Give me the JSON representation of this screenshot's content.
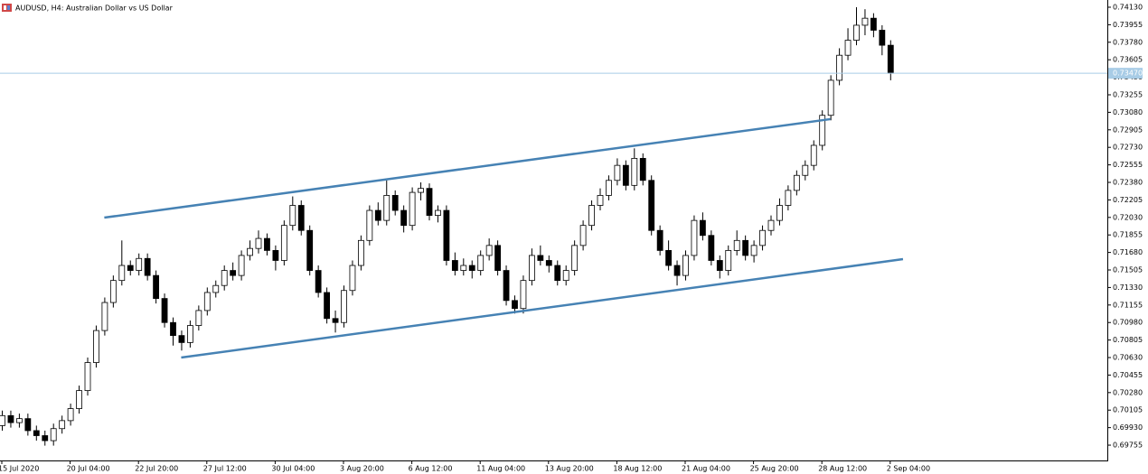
{
  "chart_data": {
    "type": "candlestick",
    "title": "AUDUSD, H4:  Australian Dollar vs US Dollar",
    "categories": [
      "15 Jul 2020",
      null,
      null,
      null,
      null,
      null,
      null,
      null,
      "20 Jul 04:00",
      null,
      null,
      null,
      null,
      null,
      null,
      null,
      "22 Jul 20:00",
      null,
      null,
      null,
      null,
      null,
      null,
      null,
      "27 Jul 12:00",
      null,
      null,
      null,
      null,
      null,
      null,
      null,
      "30 Jul 04:00",
      null,
      null,
      null,
      null,
      null,
      null,
      null,
      "3 Aug 20:00",
      null,
      null,
      null,
      null,
      null,
      null,
      null,
      "6 Aug 12:00",
      null,
      null,
      null,
      null,
      null,
      null,
      null,
      "11 Aug 04:00",
      null,
      null,
      null,
      null,
      null,
      null,
      null,
      "13 Aug 20:00",
      null,
      null,
      null,
      null,
      null,
      null,
      null,
      "18 Aug 12:00",
      null,
      null,
      null,
      null,
      null,
      null,
      null,
      "21 Aug 04:00",
      null,
      null,
      null,
      null,
      null,
      null,
      null,
      "25 Aug 20:00",
      null,
      null,
      null,
      null,
      null,
      null,
      null,
      "28 Aug 12:00",
      null,
      null,
      null,
      null,
      null,
      null,
      null,
      "2 Sep 04:00"
    ],
    "open": [
      0.6995,
      0.7005,
      0.6998,
      0.7002,
      0.699,
      0.6985,
      0.698,
      0.6992,
      0.7,
      0.7012,
      0.703,
      0.7058,
      0.709,
      0.7118,
      0.714,
      0.7155,
      0.715,
      0.7162,
      0.7145,
      0.7122,
      0.7098,
      0.7085,
      0.7078,
      0.7095,
      0.711,
      0.7128,
      0.7135,
      0.715,
      0.7145,
      0.7165,
      0.7172,
      0.7182,
      0.717,
      0.716,
      0.7195,
      0.7215,
      0.719,
      0.715,
      0.7128,
      0.7102,
      0.7098,
      0.713,
      0.7155,
      0.718,
      0.721,
      0.72,
      0.7225,
      0.721,
      0.7195,
      0.7228,
      0.7232,
      0.7205,
      0.721,
      0.716,
      0.715,
      0.7155,
      0.715,
      0.7165,
      0.7175,
      0.715,
      0.712,
      0.7112,
      0.714,
      0.7165,
      0.716,
      0.7155,
      0.714,
      0.715,
      0.7175,
      0.7195,
      0.7215,
      0.7225,
      0.724,
      0.7255,
      0.7235,
      0.7262,
      0.724,
      0.719,
      0.717,
      0.7155,
      0.7145,
      0.7165,
      0.72,
      0.7185,
      0.716,
      0.715,
      0.717,
      0.718,
      0.7165,
      0.7175,
      0.719,
      0.72,
      0.7215,
      0.723,
      0.7245,
      0.7255,
      0.7275,
      0.7305,
      0.734,
      0.7365,
      0.738,
      0.7395,
      0.7402,
      0.739,
      0.7375
    ],
    "high": [
      0.701,
      0.701,
      0.7007,
      0.7007,
      0.6995,
      0.699,
      0.6997,
      0.7005,
      0.7017,
      0.7035,
      0.7063,
      0.7095,
      0.7123,
      0.7145,
      0.718,
      0.716,
      0.7167,
      0.7167,
      0.715,
      0.7127,
      0.7103,
      0.709,
      0.71,
      0.7115,
      0.7133,
      0.714,
      0.7155,
      0.7158,
      0.717,
      0.718,
      0.719,
      0.7187,
      0.7175,
      0.72,
      0.7224,
      0.722,
      0.7195,
      0.7155,
      0.7133,
      0.711,
      0.7135,
      0.716,
      0.7185,
      0.7215,
      0.7218,
      0.724,
      0.723,
      0.7215,
      0.7233,
      0.7238,
      0.7237,
      0.7215,
      0.7215,
      0.7168,
      0.7162,
      0.716,
      0.717,
      0.7182,
      0.718,
      0.7155,
      0.7125,
      0.7145,
      0.7172,
      0.7175,
      0.7165,
      0.716,
      0.7155,
      0.718,
      0.72,
      0.722,
      0.7232,
      0.7245,
      0.7262,
      0.726,
      0.7272,
      0.7267,
      0.7245,
      0.7195,
      0.718,
      0.716,
      0.717,
      0.7205,
      0.7208,
      0.719,
      0.7165,
      0.7175,
      0.719,
      0.7185,
      0.718,
      0.7195,
      0.7205,
      0.7222,
      0.7235,
      0.725,
      0.726,
      0.728,
      0.731,
      0.7345,
      0.7372,
      0.7392,
      0.7413,
      0.7411,
      0.7407,
      0.7395,
      0.738
    ],
    "low": [
      0.699,
      0.6993,
      0.6993,
      0.6985,
      0.698,
      0.6975,
      0.6975,
      0.6987,
      0.6995,
      0.7007,
      0.7025,
      0.7053,
      0.7085,
      0.7113,
      0.7135,
      0.7145,
      0.7145,
      0.714,
      0.7117,
      0.7093,
      0.7075,
      0.707,
      0.7073,
      0.709,
      0.7105,
      0.7123,
      0.713,
      0.714,
      0.714,
      0.716,
      0.7167,
      0.7165,
      0.715,
      0.7155,
      0.719,
      0.7185,
      0.7145,
      0.7123,
      0.7097,
      0.7088,
      0.7093,
      0.7125,
      0.715,
      0.7175,
      0.7195,
      0.7195,
      0.7205,
      0.7188,
      0.719,
      0.722,
      0.72,
      0.7198,
      0.7155,
      0.7145,
      0.7145,
      0.7142,
      0.7145,
      0.716,
      0.7145,
      0.7115,
      0.7107,
      0.7107,
      0.7135,
      0.7155,
      0.7148,
      0.7135,
      0.7135,
      0.7145,
      0.717,
      0.719,
      0.721,
      0.722,
      0.7235,
      0.723,
      0.723,
      0.7235,
      0.7185,
      0.7165,
      0.715,
      0.7135,
      0.714,
      0.716,
      0.718,
      0.7155,
      0.7142,
      0.7145,
      0.7165,
      0.716,
      0.7158,
      0.717,
      0.7185,
      0.7195,
      0.721,
      0.7225,
      0.724,
      0.725,
      0.727,
      0.73,
      0.7335,
      0.736,
      0.7375,
      0.7385,
      0.7383,
      0.7365,
      0.734
    ],
    "close": [
      0.7005,
      0.6998,
      0.7002,
      0.699,
      0.6985,
      0.698,
      0.6992,
      0.7,
      0.7012,
      0.703,
      0.7058,
      0.709,
      0.7118,
      0.714,
      0.7155,
      0.715,
      0.7162,
      0.7145,
      0.7122,
      0.7098,
      0.7085,
      0.7078,
      0.7095,
      0.711,
      0.7128,
      0.7135,
      0.715,
      0.7145,
      0.7165,
      0.7172,
      0.7182,
      0.717,
      0.716,
      0.7195,
      0.7215,
      0.719,
      0.715,
      0.7128,
      0.7102,
      0.7098,
      0.713,
      0.7155,
      0.718,
      0.721,
      0.72,
      0.7225,
      0.721,
      0.7195,
      0.7228,
      0.7232,
      0.7205,
      0.721,
      0.716,
      0.715,
      0.7155,
      0.715,
      0.7165,
      0.7175,
      0.715,
      0.712,
      0.7112,
      0.714,
      0.7165,
      0.716,
      0.7155,
      0.714,
      0.715,
      0.7175,
      0.7195,
      0.7215,
      0.7225,
      0.724,
      0.7255,
      0.7235,
      0.7262,
      0.724,
      0.719,
      0.717,
      0.7155,
      0.7145,
      0.7165,
      0.72,
      0.7185,
      0.716,
      0.715,
      0.717,
      0.718,
      0.7165,
      0.7175,
      0.719,
      0.72,
      0.7215,
      0.723,
      0.7245,
      0.7255,
      0.7275,
      0.7305,
      0.734,
      0.7365,
      0.738,
      0.7395,
      0.7402,
      0.739,
      0.7375,
      0.7347
    ],
    "up_color": "#ffffff",
    "down_color": "#000000",
    "wick_color": "#000000",
    "ylim": [
      0.69602,
      0.74202
    ],
    "yticks": [
      {
        "value": 0.7413,
        "label": "0.74130"
      },
      {
        "value": 0.73955,
        "label": "0.73955"
      },
      {
        "value": 0.7378,
        "label": "0.73780"
      },
      {
        "value": 0.73605,
        "label": "0.73605"
      },
      {
        "value": 0.7343,
        "label": "0.73430"
      },
      {
        "value": 0.73255,
        "label": "0.73255"
      },
      {
        "value": 0.7308,
        "label": "0.73080"
      },
      {
        "value": 0.72905,
        "label": "0.72905"
      },
      {
        "value": 0.7273,
        "label": "0.72730"
      },
      {
        "value": 0.72555,
        "label": "0.72555"
      },
      {
        "value": 0.7238,
        "label": "0.72380"
      },
      {
        "value": 0.72205,
        "label": "0.72205"
      },
      {
        "value": 0.7203,
        "label": "0.72030"
      },
      {
        "value": 0.71855,
        "label": "0.71855"
      },
      {
        "value": 0.7168,
        "label": "0.71680"
      },
      {
        "value": 0.71505,
        "label": "0.71505"
      },
      {
        "value": 0.7133,
        "label": "0.71330"
      },
      {
        "value": 0.71155,
        "label": "0.71155"
      },
      {
        "value": 0.7098,
        "label": "0.70980"
      },
      {
        "value": 0.70805,
        "label": "0.70805"
      },
      {
        "value": 0.7063,
        "label": "0.70630"
      },
      {
        "value": 0.70455,
        "label": "0.70455"
      },
      {
        "value": 0.7028,
        "label": "0.70280"
      },
      {
        "value": 0.70105,
        "label": "0.70105"
      },
      {
        "value": 0.6993,
        "label": "0.69930"
      },
      {
        "value": 0.69755,
        "label": "0.69755"
      }
    ],
    "last_price": {
      "value": 0.7347,
      "label": "0.73470",
      "color": "#a8cce6"
    },
    "trendlines": [
      {
        "x": [
          12,
          97
        ],
        "y": [
          0.72028,
          0.73012
        ],
        "color": "#4682b4"
      },
      {
        "x": [
          21,
          105.5
        ],
        "y": [
          0.7063,
          0.71613
        ],
        "color": "#4682b4"
      }
    ],
    "grid": false
  }
}
